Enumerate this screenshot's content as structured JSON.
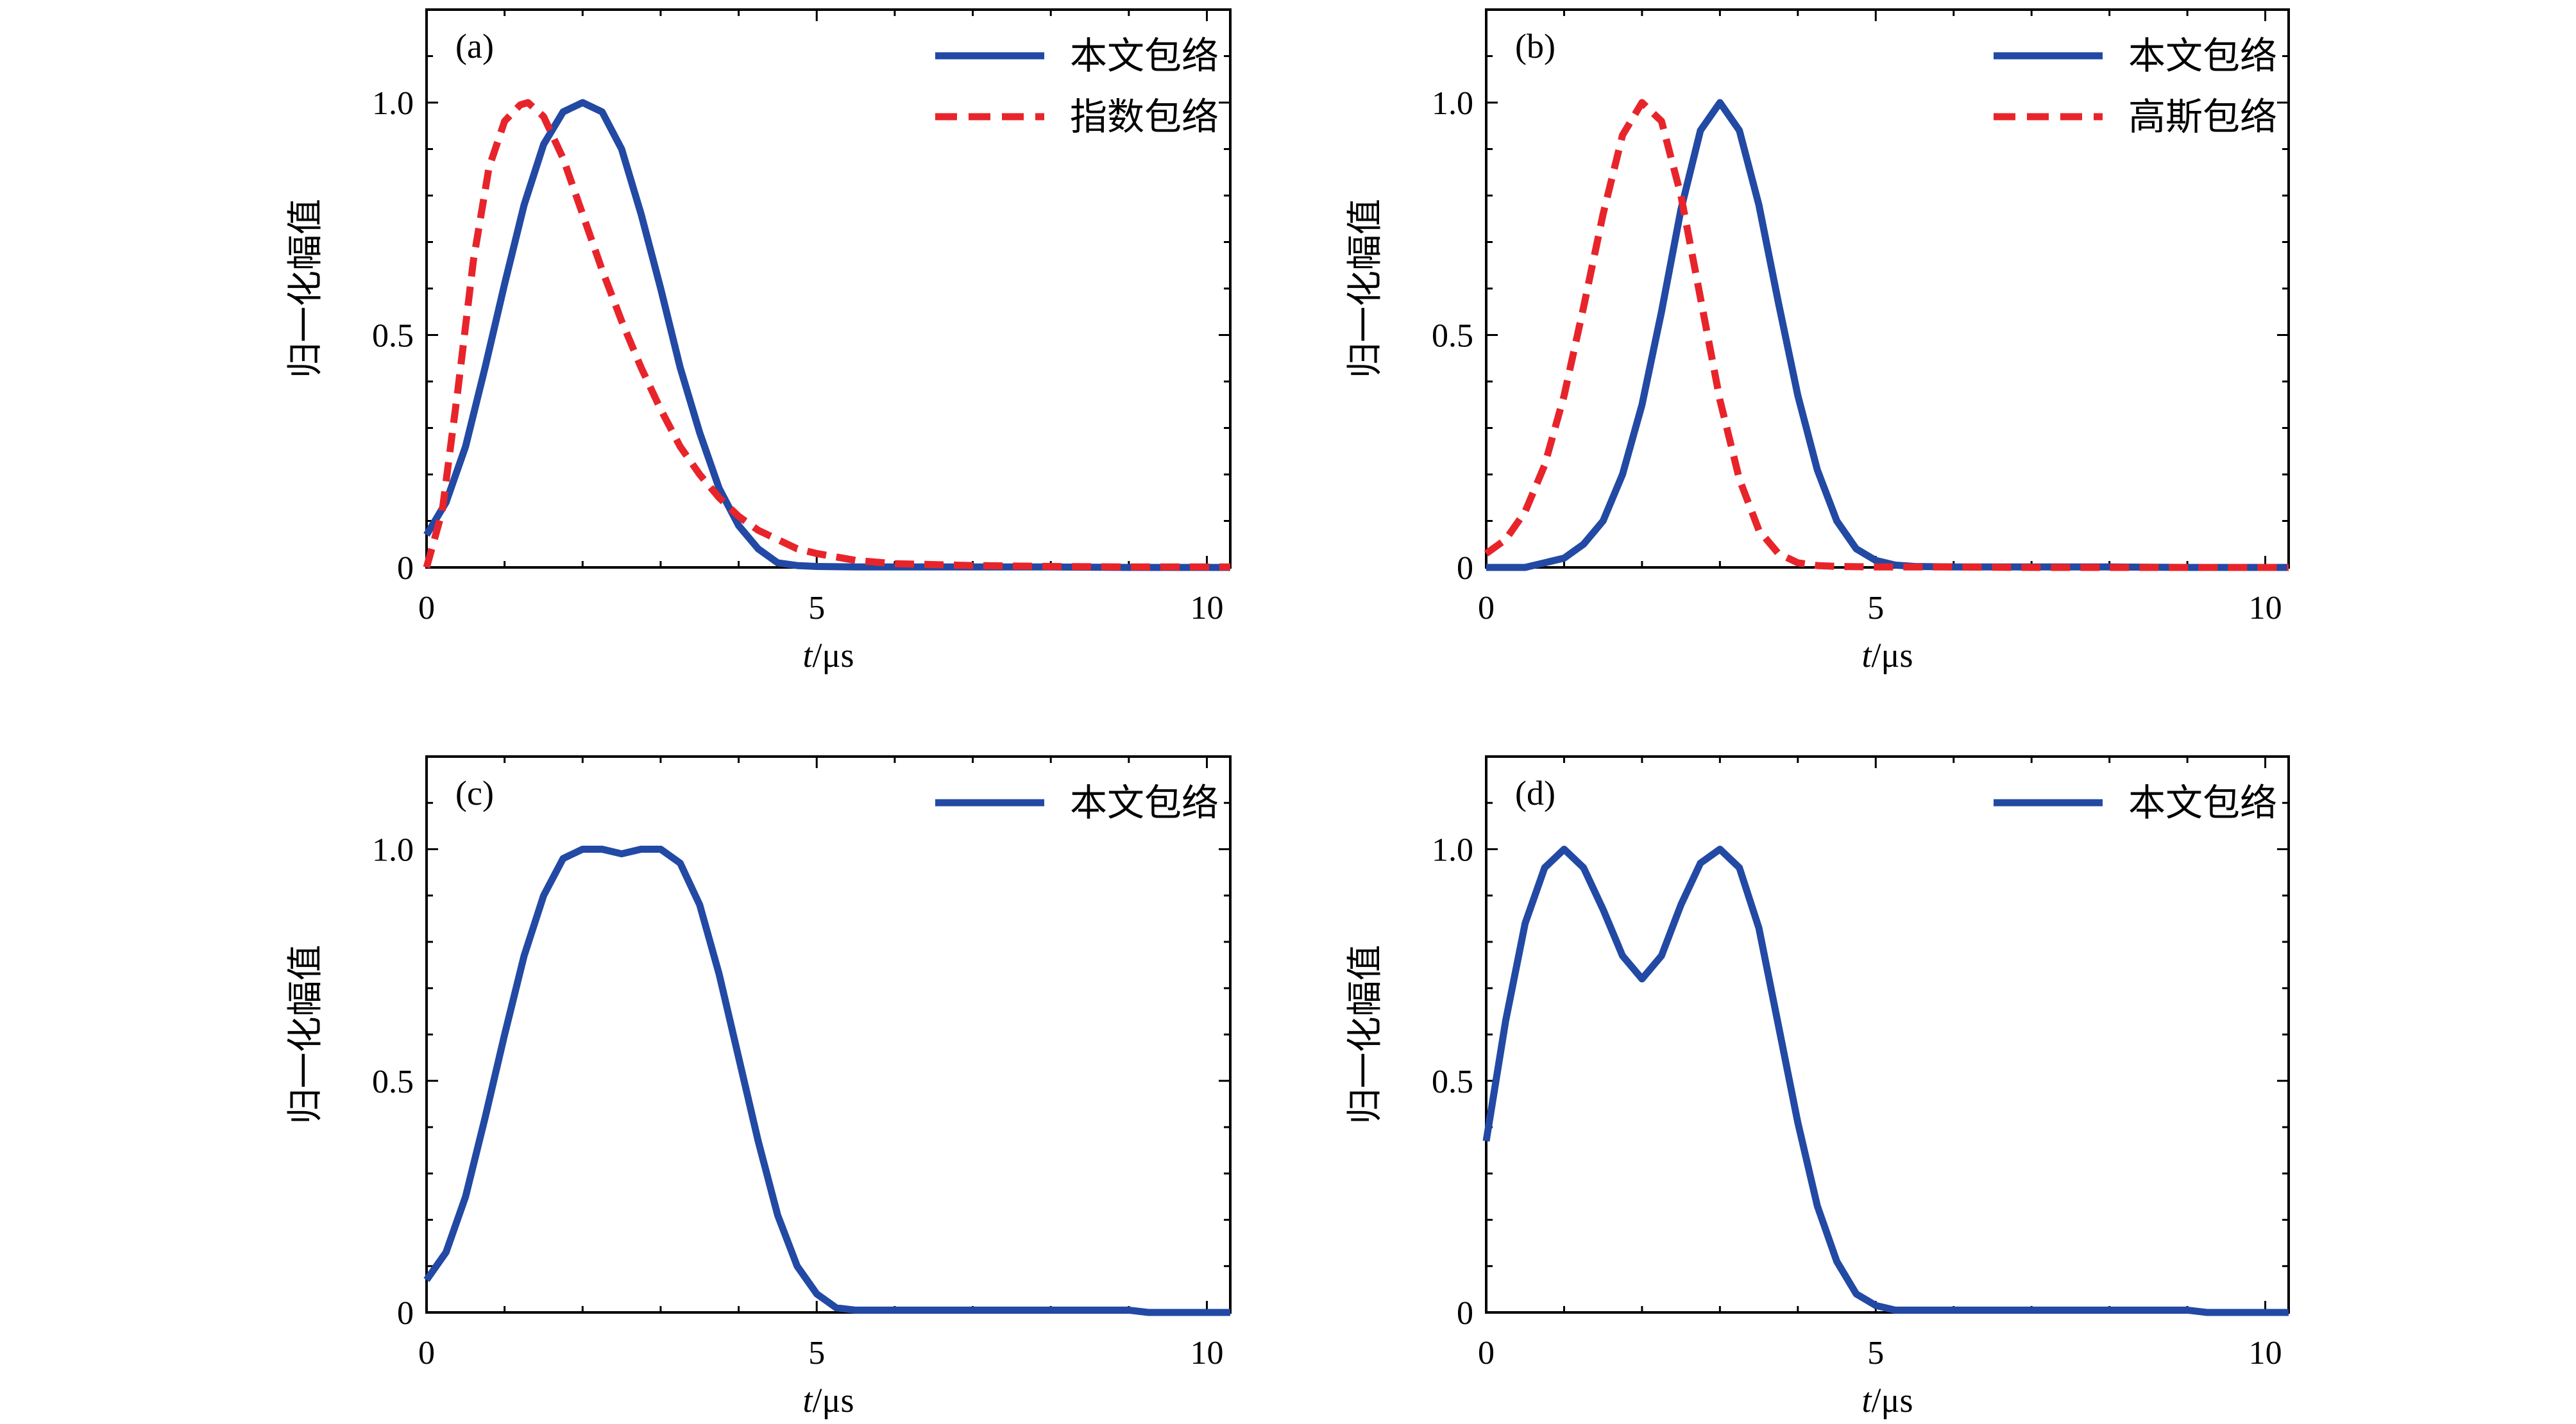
{
  "chart_data": [
    {
      "type": "line",
      "panel_label": "(a)",
      "xlabel_var": "t",
      "xlabel_unit": "/μs",
      "ylabel": "归一化幅值",
      "xlim": [
        0,
        10.3
      ],
      "ylim": [
        0,
        1.2
      ],
      "xticks": [
        0,
        5,
        10
      ],
      "xtick_labels": [
        "0",
        "5",
        "10"
      ],
      "yticks": [
        0,
        0.5,
        1.0
      ],
      "ytick_labels": [
        "0",
        "0.5",
        "1.0"
      ],
      "legend_position": "top-right",
      "series": [
        {
          "name": "本文包络",
          "color": "#2249a4",
          "style": "solid",
          "x": [
            0,
            0.25,
            0.5,
            0.75,
            1.0,
            1.25,
            1.5,
            1.75,
            2.0,
            2.25,
            2.5,
            2.75,
            3.0,
            3.25,
            3.5,
            3.75,
            4.0,
            4.25,
            4.5,
            4.75,
            5.0,
            5.5,
            6,
            7,
            8,
            9,
            10,
            10.3
          ],
          "y": [
            0.07,
            0.14,
            0.26,
            0.43,
            0.61,
            0.78,
            0.91,
            0.98,
            1.0,
            0.98,
            0.9,
            0.76,
            0.6,
            0.43,
            0.29,
            0.17,
            0.09,
            0.04,
            0.01,
            0.004,
            0.002,
            0.001,
            0.001,
            0.001,
            0.001,
            0.0,
            0.0,
            0.0
          ]
        },
        {
          "name": "指数包络",
          "color": "#e8242b",
          "style": "dashed",
          "x": [
            0,
            0.2,
            0.4,
            0.6,
            0.8,
            1.0,
            1.2,
            1.3,
            1.5,
            1.75,
            2.0,
            2.25,
            2.5,
            2.75,
            3.0,
            3.25,
            3.5,
            3.75,
            4.0,
            4.25,
            4.5,
            4.75,
            5.0,
            5.5,
            6,
            7,
            8,
            9,
            10,
            10.3
          ],
          "y": [
            0.0,
            0.12,
            0.38,
            0.66,
            0.86,
            0.96,
            0.995,
            1.0,
            0.97,
            0.88,
            0.76,
            0.64,
            0.53,
            0.43,
            0.34,
            0.26,
            0.2,
            0.15,
            0.11,
            0.08,
            0.06,
            0.04,
            0.03,
            0.015,
            0.008,
            0.004,
            0.002,
            0.001,
            0.001,
            0.001
          ]
        }
      ]
    },
    {
      "type": "line",
      "panel_label": "(b)",
      "xlabel_var": "t",
      "xlabel_unit": "/μs",
      "ylabel": "归一化幅值",
      "xlim": [
        0,
        10.3
      ],
      "ylim": [
        0,
        1.2
      ],
      "xticks": [
        0,
        5,
        10
      ],
      "xtick_labels": [
        "0",
        "5",
        "10"
      ],
      "yticks": [
        0,
        0.5,
        1.0
      ],
      "ytick_labels": [
        "0",
        "0.5",
        "1.0"
      ],
      "legend_position": "top-right",
      "series": [
        {
          "name": "本文包络",
          "color": "#2249a4",
          "style": "solid",
          "x": [
            0,
            0.5,
            1.0,
            1.25,
            1.5,
            1.75,
            2.0,
            2.25,
            2.5,
            2.75,
            3.0,
            3.25,
            3.5,
            3.75,
            4.0,
            4.25,
            4.5,
            4.75,
            5.0,
            5.25,
            5.5,
            6,
            7,
            8,
            9,
            10,
            10.3
          ],
          "y": [
            0.0,
            0.0,
            0.02,
            0.05,
            0.1,
            0.2,
            0.35,
            0.55,
            0.77,
            0.94,
            1.0,
            0.94,
            0.78,
            0.57,
            0.37,
            0.21,
            0.1,
            0.04,
            0.015,
            0.005,
            0.002,
            0.001,
            0.001,
            0.001,
            0.0,
            0.0,
            0.0
          ]
        },
        {
          "name": "高斯包络",
          "color": "#e8242b",
          "style": "dashed",
          "x": [
            0,
            0.25,
            0.5,
            0.75,
            1.0,
            1.25,
            1.5,
            1.75,
            2.0,
            2.25,
            2.5,
            2.75,
            3.0,
            3.25,
            3.5,
            3.75,
            4.0,
            4.25,
            4.5,
            5,
            6,
            7,
            8,
            9,
            10,
            10.3
          ],
          "y": [
            0.03,
            0.06,
            0.12,
            0.22,
            0.37,
            0.56,
            0.76,
            0.93,
            1.0,
            0.96,
            0.8,
            0.58,
            0.36,
            0.19,
            0.08,
            0.03,
            0.01,
            0.004,
            0.002,
            0.001,
            0.001,
            0.0,
            0.0,
            0.0,
            0.0,
            0.0
          ]
        }
      ]
    },
    {
      "type": "line",
      "panel_label": "(c)",
      "xlabel_var": "t",
      "xlabel_unit": "/μs",
      "ylabel": "归一化幅值",
      "xlim": [
        0,
        10.3
      ],
      "ylim": [
        0,
        1.2
      ],
      "xticks": [
        0,
        5,
        10
      ],
      "xtick_labels": [
        "0",
        "5",
        "10"
      ],
      "yticks": [
        0,
        0.5,
        1.0
      ],
      "ytick_labels": [
        "0",
        "0.5",
        "1.0"
      ],
      "legend_position": "top-right",
      "series": [
        {
          "name": "本文包络",
          "color": "#2249a4",
          "style": "solid",
          "x": [
            0,
            0.25,
            0.5,
            0.75,
            1.0,
            1.25,
            1.5,
            1.75,
            2.0,
            2.25,
            2.5,
            2.75,
            3.0,
            3.25,
            3.5,
            3.75,
            4.0,
            4.25,
            4.5,
            4.75,
            5.0,
            5.25,
            5.5,
            6,
            7,
            8,
            9,
            9.25,
            10,
            10.3
          ],
          "y": [
            0.07,
            0.13,
            0.25,
            0.42,
            0.6,
            0.77,
            0.9,
            0.98,
            1.0,
            1.0,
            0.99,
            1.0,
            1.0,
            0.97,
            0.88,
            0.73,
            0.55,
            0.37,
            0.21,
            0.1,
            0.04,
            0.01,
            0.005,
            0.005,
            0.005,
            0.005,
            0.005,
            0.0,
            0.0,
            0.0
          ]
        }
      ]
    },
    {
      "type": "line",
      "panel_label": "(d)",
      "xlabel_var": "t",
      "xlabel_unit": "/μs",
      "ylabel": "归一化幅值",
      "xlim": [
        0,
        10.3
      ],
      "ylim": [
        0,
        1.2
      ],
      "xticks": [
        0,
        5,
        10
      ],
      "xtick_labels": [
        "0",
        "5",
        "10"
      ],
      "yticks": [
        0,
        0.5,
        1.0
      ],
      "ytick_labels": [
        "0",
        "0.5",
        "1.0"
      ],
      "legend_position": "top-right",
      "series": [
        {
          "name": "本文包络",
          "color": "#2249a4",
          "style": "solid",
          "x": [
            0,
            0.25,
            0.5,
            0.75,
            1.0,
            1.25,
            1.5,
            1.75,
            2.0,
            2.25,
            2.5,
            2.75,
            3.0,
            3.25,
            3.5,
            3.75,
            4.0,
            4.25,
            4.5,
            4.75,
            5.0,
            5.25,
            5.5,
            6,
            7,
            8,
            9,
            9.25,
            10,
            10.3
          ],
          "y": [
            0.37,
            0.63,
            0.84,
            0.96,
            1.0,
            0.96,
            0.87,
            0.77,
            0.72,
            0.77,
            0.88,
            0.97,
            1.0,
            0.96,
            0.83,
            0.62,
            0.41,
            0.23,
            0.11,
            0.04,
            0.015,
            0.005,
            0.005,
            0.005,
            0.005,
            0.005,
            0.005,
            0.0,
            0.0,
            0.0
          ]
        }
      ]
    }
  ]
}
